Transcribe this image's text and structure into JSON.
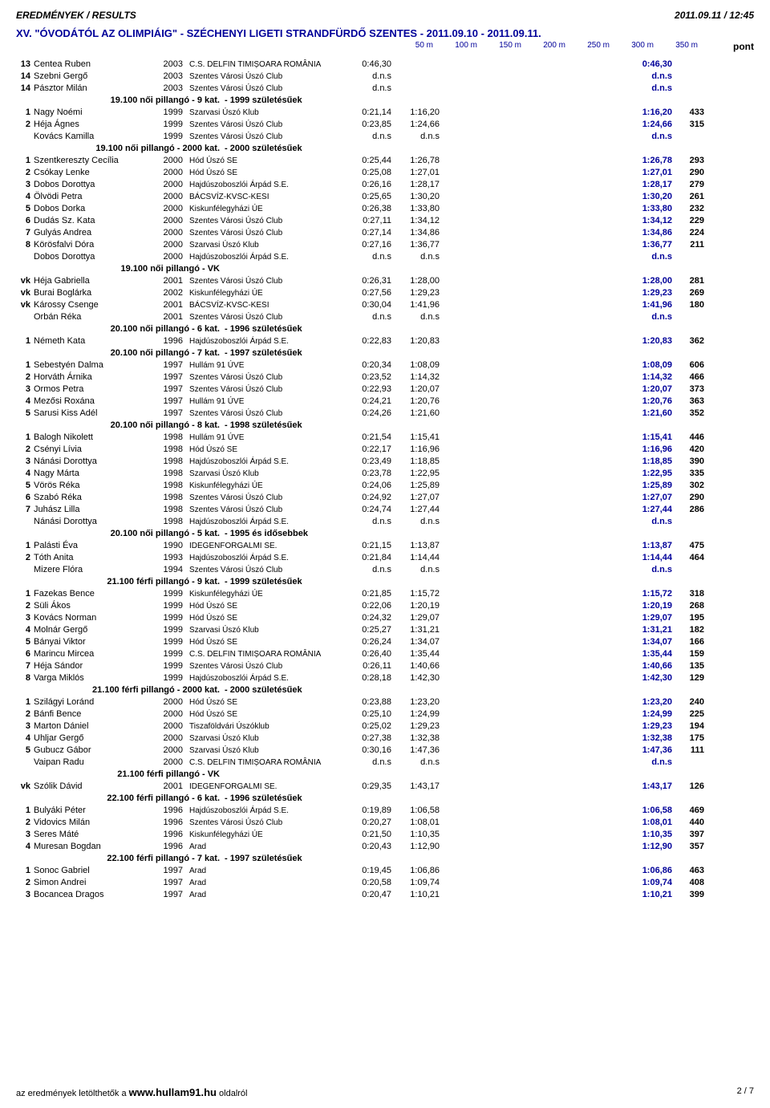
{
  "header": {
    "left": "EREDMÉNYEK / RESULTS",
    "right": "2011.09.11 / 12:45"
  },
  "event_title": "XV. \"ÓVODÁTÓL AZ OLIMPIÁIG\" - SZÉCHENYI LIGETI STRANDFÜRDŐ SZENTES - 2011.09.10 - 2011.09.11.",
  "distance_headers": [
    "50 m",
    "100 m",
    "150 m",
    "200 m",
    "250 m",
    "300 m",
    "350 m"
  ],
  "pont_label": "pont",
  "colors": {
    "accent": "#000099",
    "text": "#000000",
    "bg": "#ffffff"
  },
  "blocks": [
    {
      "type": "rows",
      "rows": [
        {
          "rank": "13",
          "name": "Centea Ruben",
          "year": "2003",
          "club": "C.S. DELFIN TIMIȘOARA ROMÂNIA",
          "t1": "0:46,30",
          "t2": "",
          "best": "0:46,30",
          "pts": ""
        },
        {
          "rank": "14",
          "name": "Szebni Gergő",
          "year": "2003",
          "club": "Szentes Városi Úszó Club",
          "t1": "d.n.s",
          "t2": "",
          "best": "d.n.s",
          "pts": ""
        },
        {
          "rank": "14",
          "name": "Pásztor Milán",
          "year": "2003",
          "club": "Szentes Városi Úszó Club",
          "t1": "d.n.s",
          "t2": "",
          "best": "d.n.s",
          "pts": ""
        }
      ]
    },
    {
      "type": "cat",
      "left": "19.100 női pillangó -  9 kat.",
      "right": "-  1999 születésűek"
    },
    {
      "type": "rows",
      "rows": [
        {
          "rank": "1",
          "name": "Nagy Noémi",
          "year": "1999",
          "club": "Szarvasi Úszó Klub",
          "t1": "0:21,14",
          "t2": "1:16,20",
          "best": "1:16,20",
          "pts": "433"
        },
        {
          "rank": "2",
          "name": "Héja Ágnes",
          "year": "1999",
          "club": "Szentes Városi Úszó Club",
          "t1": "0:23,85",
          "t2": "1:24,66",
          "best": "1:24,66",
          "pts": "315"
        },
        {
          "rank": "",
          "name": "Kovács Kamilla",
          "year": "1999",
          "club": "Szentes Városi Úszó Club",
          "t1": "d.n.s",
          "t2": "d.n.s",
          "best": "d.n.s",
          "pts": ""
        }
      ]
    },
    {
      "type": "cat",
      "left": "19.100 női pillangó -  2000 kat.",
      "right": "-  2000 születésűek"
    },
    {
      "type": "rows",
      "rows": [
        {
          "rank": "1",
          "name": "Szentkereszty Cecília",
          "year": "2000",
          "club": "Hód Úszó SE",
          "t1": "0:25,44",
          "t2": "1:26,78",
          "best": "1:26,78",
          "pts": "293"
        },
        {
          "rank": "2",
          "name": "Csókay Lenke",
          "year": "2000",
          "club": "Hód Úszó SE",
          "t1": "0:25,08",
          "t2": "1:27,01",
          "best": "1:27,01",
          "pts": "290"
        },
        {
          "rank": "3",
          "name": "Dobos Dorottya",
          "year": "2000",
          "club": "Hajdúszoboszlói Árpád S.E.",
          "t1": "0:26,16",
          "t2": "1:28,17",
          "best": "1:28,17",
          "pts": "279"
        },
        {
          "rank": "4",
          "name": "Ölvödi Petra",
          "year": "2000",
          "club": "BÁCSVÍZ-KVSC-KESI",
          "t1": "0:25,65",
          "t2": "1:30,20",
          "best": "1:30,20",
          "pts": "261"
        },
        {
          "rank": "5",
          "name": "Dobos Dorka",
          "year": "2000",
          "club": "Kiskunfélegyházi ÚE",
          "t1": "0:26,38",
          "t2": "1:33,80",
          "best": "1:33,80",
          "pts": "232"
        },
        {
          "rank": "6",
          "name": "Dudás Sz. Kata",
          "year": "2000",
          "club": "Szentes Városi Úszó Club",
          "t1": "0:27,11",
          "t2": "1:34,12",
          "best": "1:34,12",
          "pts": "229"
        },
        {
          "rank": "7",
          "name": "Gulyás Andrea",
          "year": "2000",
          "club": "Szentes Városi Úszó Club",
          "t1": "0:27,14",
          "t2": "1:34,86",
          "best": "1:34,86",
          "pts": "224"
        },
        {
          "rank": "8",
          "name": "Körösfalvi Dóra",
          "year": "2000",
          "club": "Szarvasi Úszó Klub",
          "t1": "0:27,16",
          "t2": "1:36,77",
          "best": "1:36,77",
          "pts": "211"
        },
        {
          "rank": "",
          "name": "Dobos Dorottya",
          "year": "2000",
          "club": "Hajdúszoboszlói Árpád S.E.",
          "t1": "d.n.s",
          "t2": "d.n.s",
          "best": "d.n.s",
          "pts": ""
        }
      ]
    },
    {
      "type": "cat",
      "left": "19.100 női pillangó - VK",
      "right": ""
    },
    {
      "type": "rows",
      "rows": [
        {
          "rank": "vk",
          "name": "Héja Gabriella",
          "year": "2001",
          "club": "Szentes Városi Úszó Club",
          "t1": "0:26,31",
          "t2": "1:28,00",
          "best": "1:28,00",
          "pts": "281"
        },
        {
          "rank": "vk",
          "name": "Burai Boglárka",
          "year": "2002",
          "club": "Kiskunfélegyházi ÚE",
          "t1": "0:27,56",
          "t2": "1:29,23",
          "best": "1:29,23",
          "pts": "269"
        },
        {
          "rank": "vk",
          "name": "Károssy Csenge",
          "year": "2001",
          "club": "BÁCSVÍZ-KVSC-KESI",
          "t1": "0:30,04",
          "t2": "1:41,96",
          "best": "1:41,96",
          "pts": "180"
        },
        {
          "rank": "",
          "name": "Orbán Réka",
          "year": "2001",
          "club": "Szentes Városi Úszó Club",
          "t1": "d.n.s",
          "t2": "d.n.s",
          "best": "d.n.s",
          "pts": ""
        }
      ]
    },
    {
      "type": "cat",
      "left": "20.100 női pillangó -  6 kat.",
      "right": "-  1996 születésűek"
    },
    {
      "type": "rows",
      "rows": [
        {
          "rank": "1",
          "name": "Németh Kata",
          "year": "1996",
          "club": "Hajdúszoboszlói Árpád S.E.",
          "t1": "0:22,83",
          "t2": "1:20,83",
          "best": "1:20,83",
          "pts": "362"
        }
      ]
    },
    {
      "type": "cat",
      "left": "20.100 női pillangó -  7 kat.",
      "right": "-  1997 születésűek"
    },
    {
      "type": "rows",
      "rows": [
        {
          "rank": "1",
          "name": "Sebestyén Dalma",
          "year": "1997",
          "club": "Hullám 91 ÚVE",
          "t1": "0:20,34",
          "t2": "1:08,09",
          "best": "1:08,09",
          "pts": "606"
        },
        {
          "rank": "2",
          "name": "Horváth Árnika",
          "year": "1997",
          "club": "Szentes Városi Úszó Club",
          "t1": "0:23,52",
          "t2": "1:14,32",
          "best": "1:14,32",
          "pts": "466"
        },
        {
          "rank": "3",
          "name": "Ormos Petra",
          "year": "1997",
          "club": "Szentes Városi Úszó Club",
          "t1": "0:22,93",
          "t2": "1:20,07",
          "best": "1:20,07",
          "pts": "373"
        },
        {
          "rank": "4",
          "name": "Mezősi Roxána",
          "year": "1997",
          "club": "Hullám 91 ÚVE",
          "t1": "0:24,21",
          "t2": "1:20,76",
          "best": "1:20,76",
          "pts": "363"
        },
        {
          "rank": "5",
          "name": "Sarusi Kiss Adél",
          "year": "1997",
          "club": "Szentes Városi Úszó Club",
          "t1": "0:24,26",
          "t2": "1:21,60",
          "best": "1:21,60",
          "pts": "352"
        }
      ]
    },
    {
      "type": "cat",
      "left": "20.100 női pillangó -  8 kat.",
      "right": "-  1998 születésűek"
    },
    {
      "type": "rows",
      "rows": [
        {
          "rank": "1",
          "name": "Balogh Nikolett",
          "year": "1998",
          "club": "Hullám 91 ÚVE",
          "t1": "0:21,54",
          "t2": "1:15,41",
          "best": "1:15,41",
          "pts": "446"
        },
        {
          "rank": "2",
          "name": "Csényi Lívia",
          "year": "1998",
          "club": "Hód Úszó SE",
          "t1": "0:22,17",
          "t2": "1:16,96",
          "best": "1:16,96",
          "pts": "420"
        },
        {
          "rank": "3",
          "name": "Nánási Dorottya",
          "year": "1998",
          "club": "Hajdúszoboszlói Árpád S.E.",
          "t1": "0:23,49",
          "t2": "1:18,85",
          "best": "1:18,85",
          "pts": "390"
        },
        {
          "rank": "4",
          "name": "Nagy Márta",
          "year": "1998",
          "club": "Szarvasi Úszó Klub",
          "t1": "0:23,78",
          "t2": "1:22,95",
          "best": "1:22,95",
          "pts": "335"
        },
        {
          "rank": "5",
          "name": "Vörös Réka",
          "year": "1998",
          "club": "Kiskunfélegyházi ÚE",
          "t1": "0:24,06",
          "t2": "1:25,89",
          "best": "1:25,89",
          "pts": "302"
        },
        {
          "rank": "6",
          "name": "Szabó Réka",
          "year": "1998",
          "club": "Szentes Városi Úszó Club",
          "t1": "0:24,92",
          "t2": "1:27,07",
          "best": "1:27,07",
          "pts": "290"
        },
        {
          "rank": "7",
          "name": "Juhász Lilla",
          "year": "1998",
          "club": "Szentes Városi Úszó Club",
          "t1": "0:24,74",
          "t2": "1:27,44",
          "best": "1:27,44",
          "pts": "286"
        },
        {
          "rank": "",
          "name": "Nánási Dorottya",
          "year": "1998",
          "club": "Hajdúszoboszlói Árpád S.E.",
          "t1": "d.n.s",
          "t2": "d.n.s",
          "best": "d.n.s",
          "pts": ""
        }
      ]
    },
    {
      "type": "cat",
      "left": "20.100 női pillangó -  5 kat.",
      "right": "-  1995 és idősebbek"
    },
    {
      "type": "rows",
      "rows": [
        {
          "rank": "1",
          "name": "Palásti Éva",
          "year": "1990",
          "club": "IDEGENFORGALMI SE.",
          "t1": "0:21,15",
          "t2": "1:13,87",
          "best": "1:13,87",
          "pts": "475"
        },
        {
          "rank": "2",
          "name": "Tóth Anita",
          "year": "1993",
          "club": "Hajdúszoboszlói Árpád S.E.",
          "t1": "0:21,84",
          "t2": "1:14,44",
          "best": "1:14,44",
          "pts": "464"
        },
        {
          "rank": "",
          "name": "Mizere Flóra",
          "year": "1994",
          "club": "Szentes Városi Úszó Club",
          "t1": "d.n.s",
          "t2": "d.n.s",
          "best": "d.n.s",
          "pts": ""
        }
      ]
    },
    {
      "type": "cat",
      "left": "21.100 férfi pillangó -  9 kat.",
      "right": "-  1999 születésűek"
    },
    {
      "type": "rows",
      "rows": [
        {
          "rank": "1",
          "name": "Fazekas Bence",
          "year": "1999",
          "club": "Kiskunfélegyházi ÚE",
          "t1": "0:21,85",
          "t2": "1:15,72",
          "best": "1:15,72",
          "pts": "318"
        },
        {
          "rank": "2",
          "name": "Süli Ákos",
          "year": "1999",
          "club": "Hód Úszó SE",
          "t1": "0:22,06",
          "t2": "1:20,19",
          "best": "1:20,19",
          "pts": "268"
        },
        {
          "rank": "3",
          "name": "Kovács Norman",
          "year": "1999",
          "club": "Hód Úszó SE",
          "t1": "0:24,32",
          "t2": "1:29,07",
          "best": "1:29,07",
          "pts": "195"
        },
        {
          "rank": "4",
          "name": "Molnár Gergő",
          "year": "1999",
          "club": "Szarvasi Úszó Klub",
          "t1": "0:25,27",
          "t2": "1:31,21",
          "best": "1:31,21",
          "pts": "182"
        },
        {
          "rank": "5",
          "name": "Bányai Viktor",
          "year": "1999",
          "club": "Hód Úszó SE",
          "t1": "0:26,24",
          "t2": "1:34,07",
          "best": "1:34,07",
          "pts": "166"
        },
        {
          "rank": "6",
          "name": "Marincu Mircea",
          "year": "1999",
          "club": "C.S. DELFIN TIMIȘOARA ROMÂNIA",
          "t1": "0:26,40",
          "t2": "1:35,44",
          "best": "1:35,44",
          "pts": "159"
        },
        {
          "rank": "7",
          "name": "Héja Sándor",
          "year": "1999",
          "club": "Szentes Városi Úszó Club",
          "t1": "0:26,11",
          "t2": "1:40,66",
          "best": "1:40,66",
          "pts": "135"
        },
        {
          "rank": "8",
          "name": "Varga Miklós",
          "year": "1999",
          "club": "Hajdúszoboszlói Árpád S.E.",
          "t1": "0:28,18",
          "t2": "1:42,30",
          "best": "1:42,30",
          "pts": "129"
        }
      ]
    },
    {
      "type": "cat",
      "left": "21.100 férfi pillangó -  2000 kat.",
      "right": "-  2000 születésűek"
    },
    {
      "type": "rows",
      "rows": [
        {
          "rank": "1",
          "name": "Szilágyi Loránd",
          "year": "2000",
          "club": "Hód Úszó SE",
          "t1": "0:23,88",
          "t2": "1:23,20",
          "best": "1:23,20",
          "pts": "240"
        },
        {
          "rank": "2",
          "name": "Bánfi Bence",
          "year": "2000",
          "club": "Hód Úszó SE",
          "t1": "0:25,10",
          "t2": "1:24,99",
          "best": "1:24,99",
          "pts": "225"
        },
        {
          "rank": "3",
          "name": "Marton Dániel",
          "year": "2000",
          "club": "Tiszaföldvári Úszóklub",
          "t1": "0:25,02",
          "t2": "1:29,23",
          "best": "1:29,23",
          "pts": "194"
        },
        {
          "rank": "4",
          "name": "Uhljar Gergő",
          "year": "2000",
          "club": "Szarvasi Úszó Klub",
          "t1": "0:27,38",
          "t2": "1:32,38",
          "best": "1:32,38",
          "pts": "175"
        },
        {
          "rank": "5",
          "name": "Gubucz Gábor",
          "year": "2000",
          "club": "Szarvasi Úszó Klub",
          "t1": "0:30,16",
          "t2": "1:47,36",
          "best": "1:47,36",
          "pts": "111"
        },
        {
          "rank": "",
          "name": "Vaipan Radu",
          "year": "2000",
          "club": "C.S. DELFIN TIMIȘOARA ROMÂNIA",
          "t1": "d.n.s",
          "t2": "d.n.s",
          "best": "d.n.s",
          "pts": ""
        }
      ]
    },
    {
      "type": "cat",
      "left": "21.100 férfi pillangó - VK",
      "right": ""
    },
    {
      "type": "rows",
      "rows": [
        {
          "rank": "vk",
          "name": "Szólik Dávid",
          "year": "2001",
          "club": "IDEGENFORGALMI SE.",
          "t1": "0:29,35",
          "t2": "1:43,17",
          "best": "1:43,17",
          "pts": "126"
        }
      ]
    },
    {
      "type": "cat",
      "left": "22.100 férfi pillangó -  6 kat.",
      "right": "-  1996 születésűek"
    },
    {
      "type": "rows",
      "rows": [
        {
          "rank": "1",
          "name": "Bulyáki Péter",
          "year": "1996",
          "club": "Hajdúszoboszlói Árpád S.E.",
          "t1": "0:19,89",
          "t2": "1:06,58",
          "best": "1:06,58",
          "pts": "469"
        },
        {
          "rank": "2",
          "name": "Vidovics Milán",
          "year": "1996",
          "club": "Szentes Városi Úszó Club",
          "t1": "0:20,27",
          "t2": "1:08,01",
          "best": "1:08,01",
          "pts": "440"
        },
        {
          "rank": "3",
          "name": "Seres Máté",
          "year": "1996",
          "club": "Kiskunfélegyházi ÚE",
          "t1": "0:21,50",
          "t2": "1:10,35",
          "best": "1:10,35",
          "pts": "397"
        },
        {
          "rank": "4",
          "name": "Muresan Bogdan",
          "year": "1996",
          "club": "Arad",
          "t1": "0:20,43",
          "t2": "1:12,90",
          "best": "1:12,90",
          "pts": "357"
        }
      ]
    },
    {
      "type": "cat",
      "left": "22.100 férfi pillangó -  7 kat.",
      "right": "-  1997 születésűek"
    },
    {
      "type": "rows",
      "rows": [
        {
          "rank": "1",
          "name": "Sonoc Gabriel",
          "year": "1997",
          "club": "Arad",
          "t1": "0:19,45",
          "t2": "1:06,86",
          "best": "1:06,86",
          "pts": "463"
        },
        {
          "rank": "2",
          "name": "Simon Andrei",
          "year": "1997",
          "club": "Arad",
          "t1": "0:20,58",
          "t2": "1:09,74",
          "best": "1:09,74",
          "pts": "408"
        },
        {
          "rank": "3",
          "name": "Bocancea Dragos",
          "year": "1997",
          "club": "Arad",
          "t1": "0:20,47",
          "t2": "1:10,21",
          "best": "1:10,21",
          "pts": "399"
        }
      ]
    }
  ],
  "footer": {
    "prefix": "az eredmények letölthetők a ",
    "url": "www.hullam91.hu",
    "suffix": " oldalról",
    "page": "2 / 7"
  }
}
